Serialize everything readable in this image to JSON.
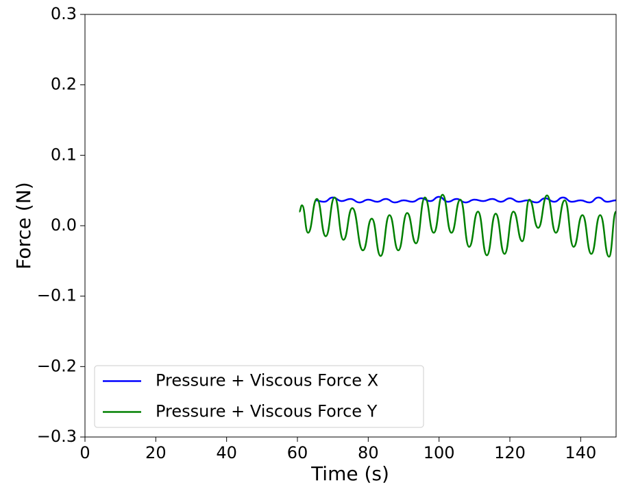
{
  "chart_data": {
    "type": "line",
    "xlabel": "Time (s)",
    "ylabel": "Force (N)",
    "xlim": [
      0,
      150
    ],
    "xticks": [
      0,
      20,
      40,
      60,
      80,
      100,
      120,
      140
    ],
    "ylim": [
      -0.3,
      0.3
    ],
    "yticks": [
      {
        "value": -0.3,
        "label": "−0.3"
      },
      {
        "value": -0.2,
        "label": "−0.2"
      },
      {
        "value": -0.1,
        "label": "−0.1"
      },
      {
        "value": 0,
        "label": "0.0"
      },
      0.1,
      0.2,
      0.3
    ],
    "grid": false,
    "legend": "lower left",
    "series": [
      {
        "name": "Pressure + Viscous Force X",
        "color": "#0000ff",
        "x": [
          65,
          67.5,
          70,
          72.5,
          75,
          77.5,
          80,
          82.5,
          85,
          87.5,
          90,
          92.5,
          95,
          97.5,
          100,
          102.5,
          105,
          107.5,
          110,
          112.5,
          115,
          117.5,
          120,
          122.5,
          125,
          127.5,
          130,
          132.5,
          135,
          137.5,
          140,
          142.5,
          145,
          147.5,
          150
        ],
        "values": [
          0.036,
          0.034,
          0.04,
          0.035,
          0.038,
          0.033,
          0.037,
          0.034,
          0.038,
          0.033,
          0.036,
          0.034,
          0.039,
          0.035,
          0.041,
          0.034,
          0.038,
          0.033,
          0.037,
          0.035,
          0.038,
          0.034,
          0.039,
          0.034,
          0.036,
          0.033,
          0.039,
          0.034,
          0.04,
          0.034,
          0.036,
          0.033,
          0.04,
          0.034,
          0.036
        ]
      },
      {
        "name": "Pressure + Viscous Force Y",
        "color": "#008000",
        "x": [
          60.5,
          61.3,
          63,
          65.5,
          68,
          70.5,
          73,
          75.5,
          78.5,
          81,
          83.5,
          86,
          88.5,
          91,
          93.5,
          96,
          98.5,
          101,
          103.5,
          106,
          108.5,
          111,
          113.5,
          116,
          118.5,
          121,
          123.5,
          125.5,
          128,
          130.5,
          133,
          135.5,
          138,
          140.5,
          143,
          145.5,
          148,
          150
        ],
        "values": [
          0.02,
          0.029,
          -0.01,
          0.038,
          -0.015,
          0.04,
          -0.02,
          0.025,
          -0.035,
          0.01,
          -0.043,
          0.015,
          -0.035,
          0.018,
          -0.025,
          0.04,
          -0.01,
          0.044,
          -0.01,
          0.037,
          -0.03,
          0.02,
          -0.042,
          0.017,
          -0.04,
          0.02,
          -0.022,
          0.037,
          -0.003,
          0.043,
          -0.01,
          0.036,
          -0.03,
          0.015,
          -0.04,
          0.015,
          -0.044,
          0.02
        ]
      }
    ]
  }
}
